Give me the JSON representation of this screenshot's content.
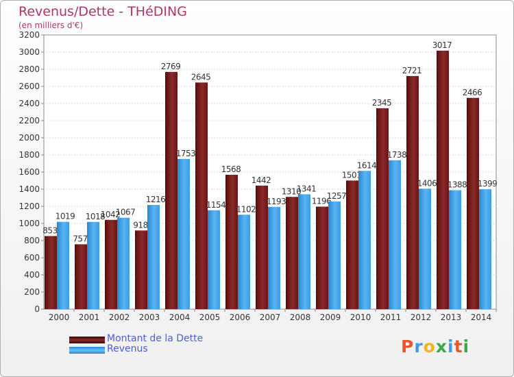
{
  "header": {
    "title": "Revenus/Dette - THéDING",
    "subtitle": "(en milliers d'€)"
  },
  "chart_data": {
    "type": "bar",
    "categories": [
      "2000",
      "2001",
      "2002",
      "2003",
      "2004",
      "2005",
      "2006",
      "2007",
      "2008",
      "2009",
      "2010",
      "2011",
      "2012",
      "2013",
      "2014"
    ],
    "series": [
      {
        "name": "Montant de la Dette",
        "values": [
          853,
          757,
          1042,
          918,
          2769,
          2645,
          1568,
          1442,
          1310,
          1196,
          1501,
          2345,
          2721,
          3017,
          2466
        ],
        "labels": [
          "853",
          "757",
          "1042",
          "918",
          "2769",
          "2645",
          "1568",
          "1442",
          "1310",
          "1196",
          "1501",
          "2345",
          "2721",
          "3017",
          "2466"
        ],
        "color": "#7a1c1c"
      },
      {
        "name": "Revenus",
        "values": [
          1019,
          1018,
          1067,
          1216,
          1753,
          1154,
          1102,
          1193,
          1341,
          1257,
          1614,
          1738,
          1406,
          1388,
          1399
        ],
        "labels": [
          "1019",
          "1018",
          "1067",
          "1216",
          "1753",
          "1154",
          "1102",
          "1193",
          "1341",
          "1257",
          "1614",
          "1738",
          "1406",
          "1388",
          "1399"
        ],
        "color": "#3a9de6"
      }
    ],
    "ylim": [
      0,
      3200
    ],
    "yticks": [
      "0",
      "200",
      "400",
      "600",
      "800",
      "1000",
      "1200",
      "1400",
      "1600",
      "1800",
      "2000",
      "2200",
      "2400",
      "2600",
      "2800",
      "3000",
      "3200"
    ],
    "xlabel": "",
    "ylabel": "",
    "grid": true,
    "legend": "bottom-left"
  },
  "legend": {
    "dette_label": "Montant de la Dette",
    "revenus_label": "Revenus"
  },
  "logo": {
    "letters": [
      "P",
      "r",
      "o",
      "x",
      "i",
      "t",
      "i"
    ],
    "colors": [
      "#e8572a",
      "#3a9de6",
      "#f2b521",
      "#3aa84a",
      "#3a9de6",
      "#e8572a",
      "#3aa84a"
    ]
  }
}
